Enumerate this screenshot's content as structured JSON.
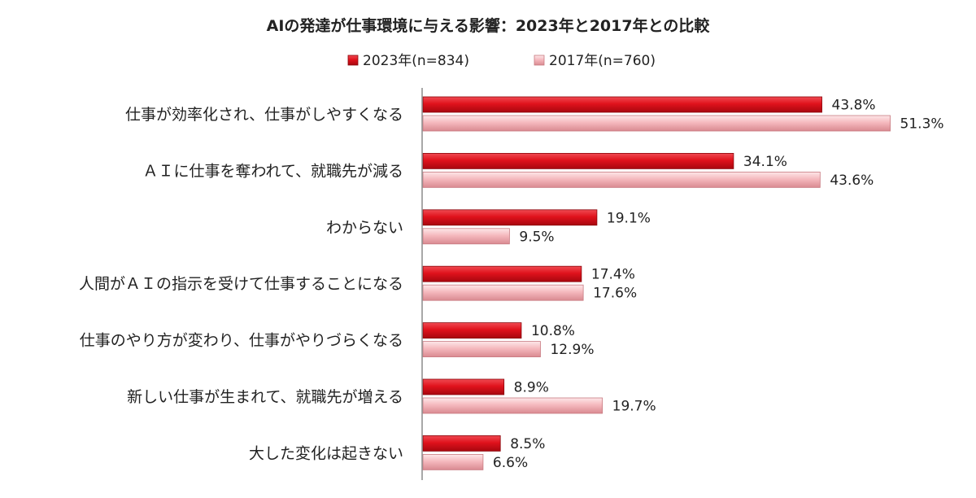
{
  "chart_data": {
    "type": "bar",
    "orientation": "horizontal",
    "title": "AIの発達が仕事環境に与える影響：2023年と2017年との比較",
    "legend_position": "top",
    "categories": [
      "仕事が効率化され、仕事がしやすくなる",
      "ＡＩに仕事を奪われて、就職先が減る",
      "わからない",
      "人間がＡＩの指示を受けて仕事することになる",
      "仕事のやり方が変わり、仕事がやりづらくなる",
      "新しい仕事が生まれて、就職先が増える",
      "大した変化は起きない"
    ],
    "series": [
      {
        "name": "2023年(n=834)",
        "color": "#e0121c",
        "values": [
          43.8,
          34.1,
          19.1,
          17.4,
          10.8,
          8.9,
          8.5
        ],
        "labels": [
          "43.8%",
          "34.1%",
          "19.1%",
          "17.4%",
          "10.8%",
          "8.9%",
          "8.5%"
        ]
      },
      {
        "name": "2017年(n=760)",
        "color": "#f5b9be",
        "values": [
          51.3,
          43.6,
          9.5,
          17.6,
          12.9,
          19.7,
          6.6
        ],
        "labels": [
          "51.3%",
          "43.6%",
          "9.5%",
          "17.6%",
          "12.9%",
          "19.7%",
          "6.6%"
        ]
      }
    ],
    "xlim": [
      0,
      100
    ],
    "grid": false
  }
}
